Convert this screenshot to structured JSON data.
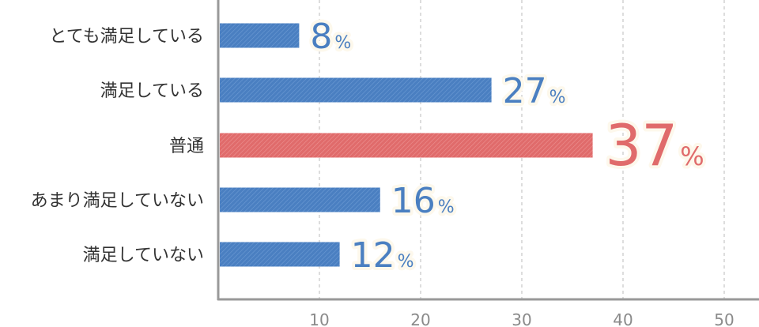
{
  "chart_data": {
    "type": "bar",
    "orientation": "horizontal",
    "categories": [
      "とても満足している",
      "満足している",
      "普通",
      "あまり満足していない",
      "満足していない"
    ],
    "values": [
      8,
      27,
      37,
      16,
      12
    ],
    "value_suffix": "%",
    "xlim": [
      0,
      50
    ],
    "x_ticks": [
      10,
      20,
      30,
      40,
      50
    ],
    "grid": "vertical dashed",
    "highlight_index": 2,
    "colors": {
      "bar": "#4a7fc1",
      "highlight": "#e06b6b",
      "axis": "#999999",
      "grid": "#bbbbbb",
      "tick_text": "#8a8a8a",
      "label_text": "#333333",
      "value_halo": "#fdf8ec"
    }
  }
}
